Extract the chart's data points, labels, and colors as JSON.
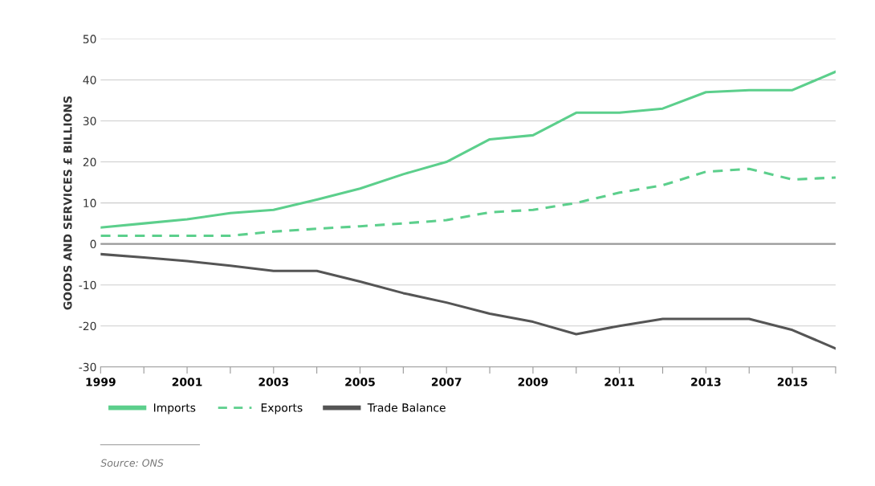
{
  "chart_data": {
    "type": "line",
    "ylabel": "GOODS AND SERVICES £ BILLIONS",
    "x": [
      1999,
      2000,
      2001,
      2002,
      2003,
      2004,
      2005,
      2006,
      2007,
      2008,
      2009,
      2010,
      2011,
      2012,
      2013,
      2014,
      2015,
      2016
    ],
    "series": [
      {
        "name": "Imports",
        "color": "#5ccf8c",
        "line_style": "solid",
        "values": [
          4,
          5,
          6,
          7.5,
          8.3,
          10.8,
          13.5,
          17,
          20,
          25.5,
          26.5,
          32,
          32,
          33,
          37,
          37.5,
          37.5,
          42
        ]
      },
      {
        "name": "Exports",
        "color": "#5ccf8c",
        "line_style": "dashed",
        "values": [
          2,
          2,
          2,
          2,
          3,
          3.7,
          4.3,
          5,
          5.8,
          7.7,
          8.3,
          10,
          12.5,
          14.3,
          17.6,
          18.3,
          15.7,
          16.2
        ]
      },
      {
        "name": "Trade Balance",
        "color": "#555555",
        "line_style": "solid",
        "values": [
          -2.5,
          -3.3,
          -4.2,
          -5.3,
          -6.6,
          -6.6,
          -9.2,
          -12,
          -14.3,
          -17,
          -19,
          -22,
          -20,
          -18.3,
          -18.3,
          -18.3,
          -21,
          -25.5
        ]
      }
    ],
    "xlim": [
      1999,
      2016
    ],
    "ylim": [
      -30,
      50
    ],
    "xticks": [
      1999,
      {
        "value": 2000,
        "label": null
      },
      2001,
      {
        "value": 2002,
        "label": null
      },
      2003,
      {
        "value": 2004,
        "label": null
      },
      2005,
      {
        "value": 2006,
        "label": null
      },
      2007,
      {
        "value": 2008,
        "label": null
      },
      2009,
      {
        "value": 2010,
        "label": null
      },
      2011,
      {
        "value": 2012,
        "label": null
      },
      2013,
      {
        "value": 2014,
        "label": null
      },
      2015,
      {
        "value": 2016,
        "label": null
      }
    ],
    "yticks": [
      -30,
      -20,
      -10,
      0,
      10,
      20,
      30,
      40,
      50
    ],
    "ref_lines": [
      {
        "axis": "y",
        "value": 0,
        "color": "#999999"
      }
    ],
    "grid": "y",
    "legend": "bottom left",
    "marker": "none",
    "annotations": [
      "Source: ONS"
    ]
  }
}
